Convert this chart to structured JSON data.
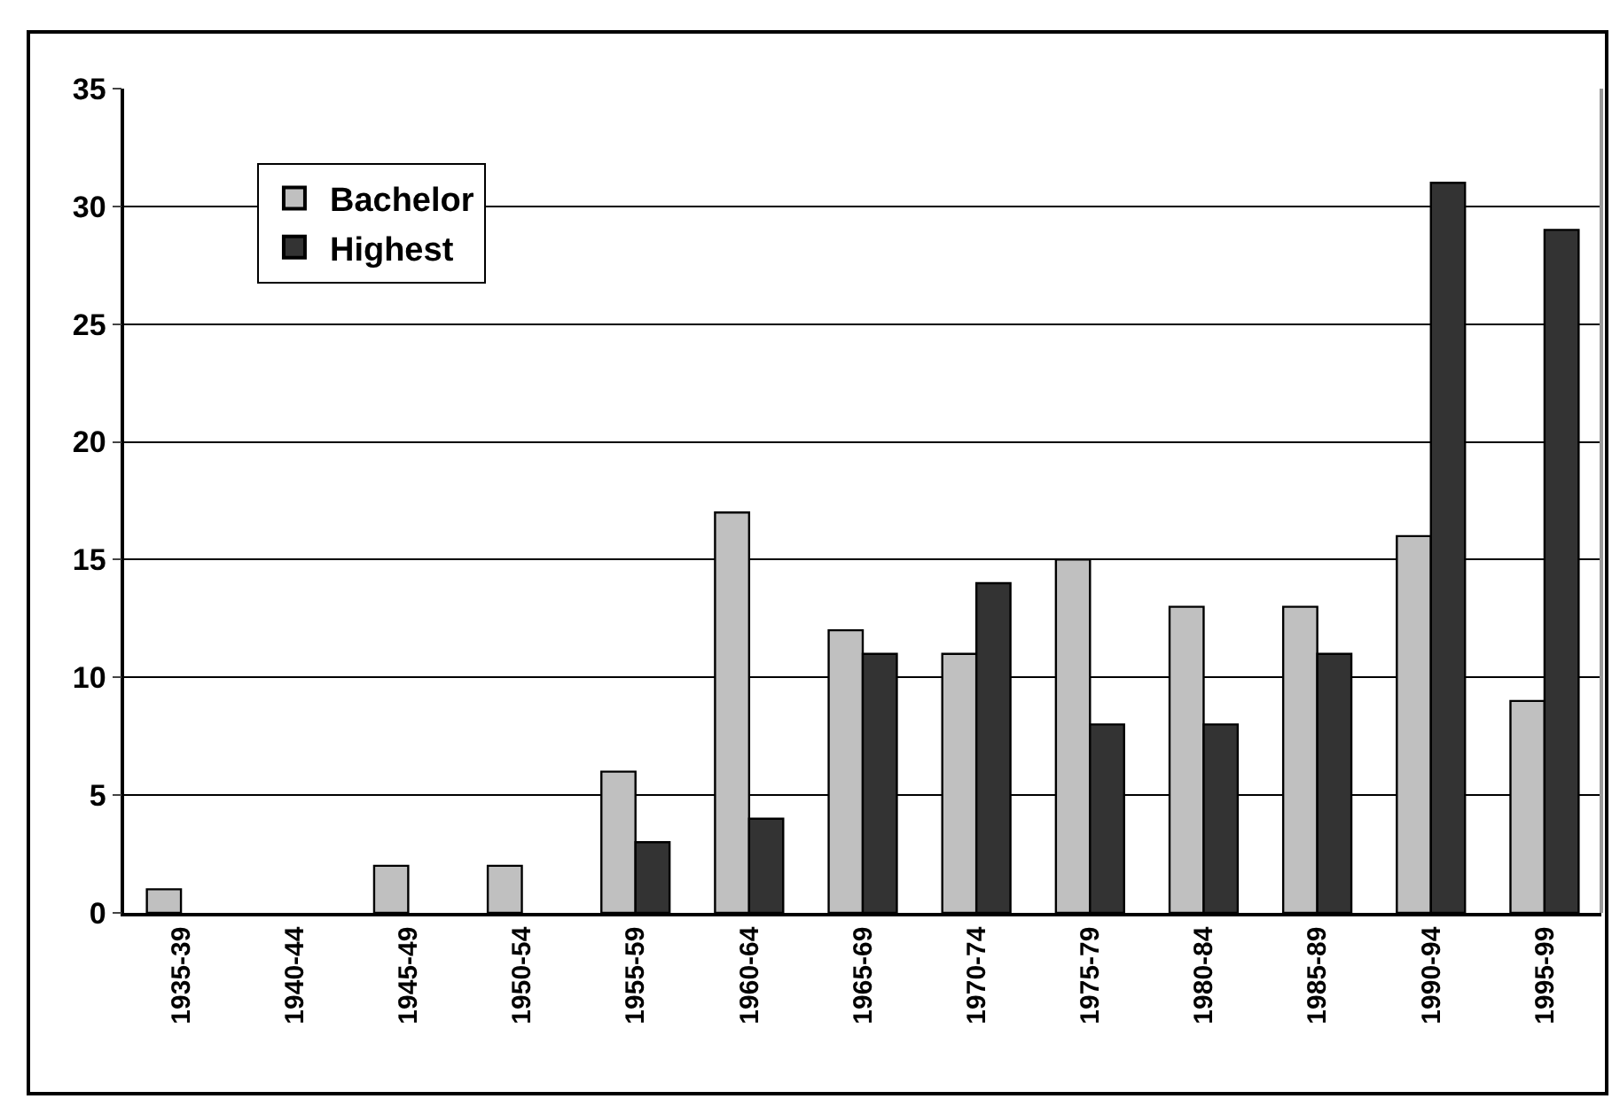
{
  "chart_data": {
    "type": "bar",
    "categories": [
      "1935-39",
      "1940-44",
      "1945-49",
      "1950-54",
      "1955-59",
      "1960-64",
      "1965-69",
      "1970-74",
      "1975-79",
      "1980-84",
      "1985-89",
      "1990-94",
      "1995-99"
    ],
    "series": [
      {
        "name": "Bachelor",
        "color": "#c0c0c0",
        "values": [
          1,
          0,
          2,
          2,
          6,
          17,
          12,
          11,
          15,
          13,
          13,
          16,
          9
        ]
      },
      {
        "name": "Highest",
        "color": "#333333",
        "values": [
          0,
          0,
          0,
          0,
          3,
          4,
          11,
          14,
          8,
          8,
          11,
          31,
          29
        ]
      }
    ],
    "ylim": [
      0,
      35
    ],
    "yticks": [
      0,
      5,
      10,
      15,
      20,
      25,
      30,
      35
    ],
    "grid": "y",
    "legend": "top left"
  }
}
